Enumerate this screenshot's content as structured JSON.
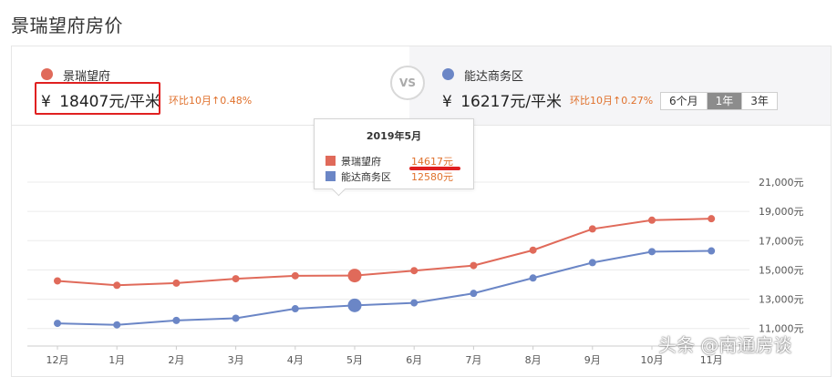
{
  "page": {
    "title": "景瑞望府房价"
  },
  "comparison": {
    "left": {
      "name": "景瑞望府",
      "currency": "¥",
      "price": "18407元/平米",
      "change": "环比10月↑0.48%",
      "color": "#e06a5a"
    },
    "vs_label": "VS",
    "right": {
      "name": "能达商务区",
      "currency": "¥",
      "price": "16217元/平米",
      "change": "环比10月↑0.27%",
      "color": "#6b86c6"
    }
  },
  "range_tabs": [
    {
      "label": "6个月",
      "active": false
    },
    {
      "label": "1年",
      "active": true
    },
    {
      "label": "3年",
      "active": false
    }
  ],
  "tooltip": {
    "title": "2019年5月",
    "rows": [
      {
        "name": "景瑞望府",
        "value": "14617元"
      },
      {
        "name": "能达商务区",
        "value": "12580元"
      }
    ]
  },
  "chart_data": {
    "type": "line",
    "categories": [
      "12月",
      "1月",
      "2月",
      "3月",
      "4月",
      "5月",
      "6月",
      "7月",
      "8月",
      "9月",
      "10月",
      "11月"
    ],
    "series": [
      {
        "name": "景瑞望府",
        "color": "#e06a5a",
        "values": [
          14250,
          13950,
          14100,
          14400,
          14600,
          14617,
          14950,
          15300,
          16350,
          17800,
          18400,
          18500
        ]
      },
      {
        "name": "能达商务区",
        "color": "#6b86c6",
        "values": [
          11350,
          11250,
          11550,
          11700,
          12350,
          12580,
          12750,
          13400,
          14450,
          15500,
          16250,
          16300
        ]
      }
    ],
    "y_ticks": [
      "11,000元",
      "13,000元",
      "15,000元",
      "17,000元",
      "19,000元",
      "21,000元"
    ],
    "y_tick_values": [
      11000,
      13000,
      15000,
      17000,
      19000,
      21000
    ],
    "ylim": [
      9800,
      21000
    ],
    "grid": true,
    "highlight_index": 5
  },
  "watermark": "头条 @南通房谈"
}
